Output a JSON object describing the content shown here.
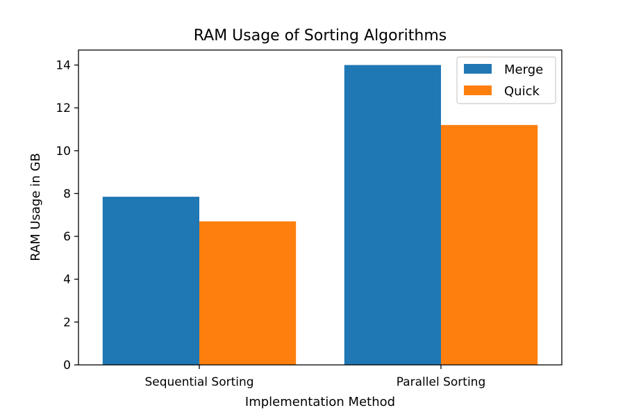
{
  "chart_data": {
    "type": "bar",
    "title": "RAM Usage of Sorting Algorithms",
    "xlabel": "Implementation Method",
    "ylabel": "RAM Usage in GB",
    "categories": [
      "Sequential Sorting",
      "Parallel Sorting"
    ],
    "series": [
      {
        "name": "Merge",
        "values": [
          7.85,
          14.0
        ],
        "color": "#1f77b4"
      },
      {
        "name": "Quick",
        "values": [
          6.7,
          11.2
        ],
        "color": "#ff7f0e"
      }
    ],
    "ylim": [
      0,
      14.7
    ],
    "yticks": [
      0,
      2,
      4,
      6,
      8,
      10,
      12,
      14
    ],
    "grid": false,
    "legend_position": "top-right"
  }
}
